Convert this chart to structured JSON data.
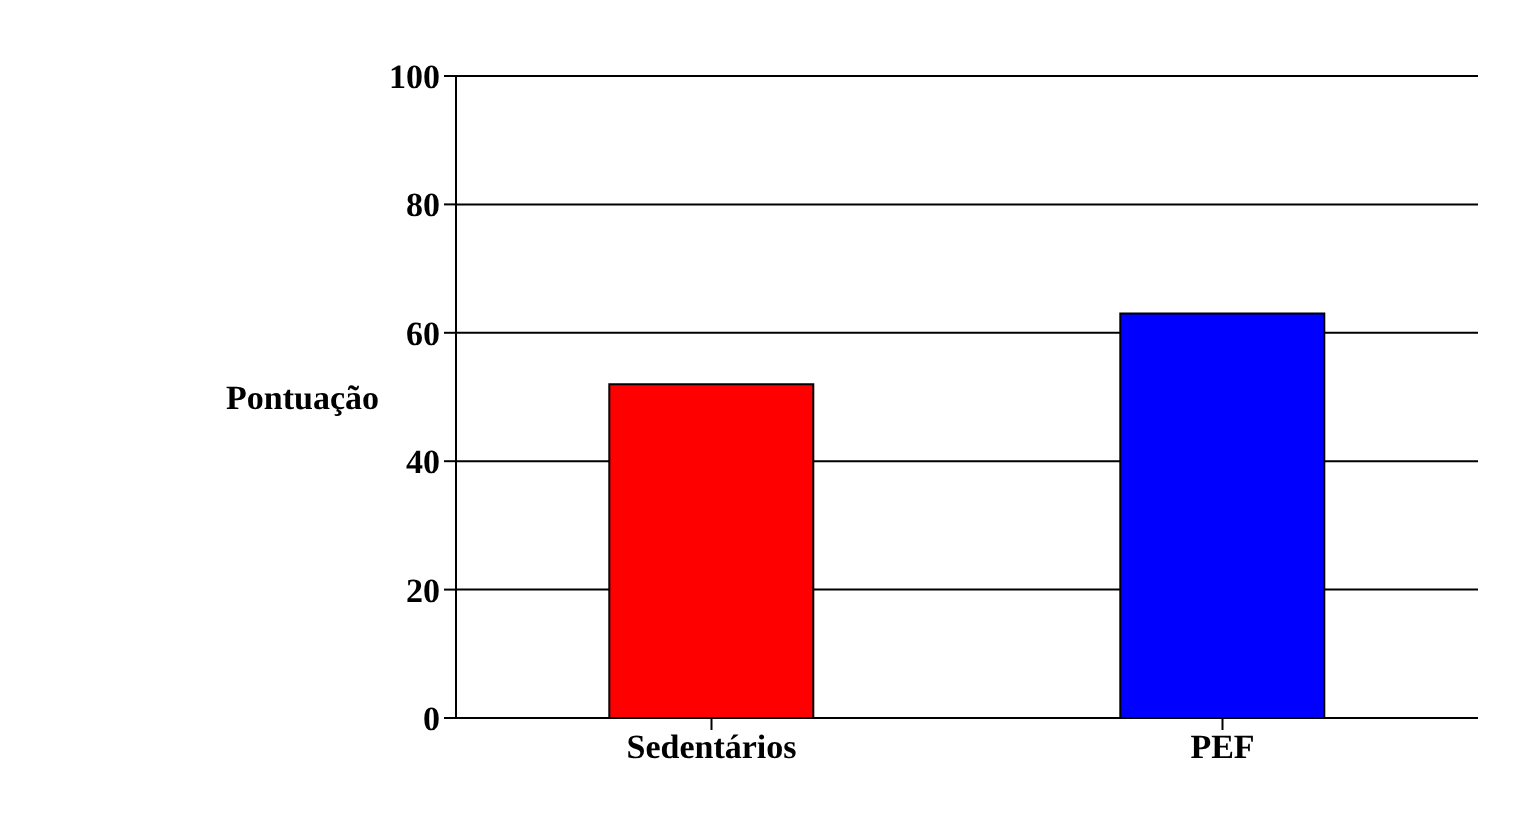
{
  "chart_data": {
    "type": "bar",
    "ylabel": "Pontuação",
    "categories": [
      "Sedentários",
      "PEF"
    ],
    "values": [
      52,
      63
    ],
    "colors": [
      "#ff0000",
      "#0000ff"
    ],
    "ylim": [
      0,
      100
    ],
    "yticks": [
      0,
      20,
      40,
      60,
      80,
      100
    ],
    "grid": "y"
  }
}
